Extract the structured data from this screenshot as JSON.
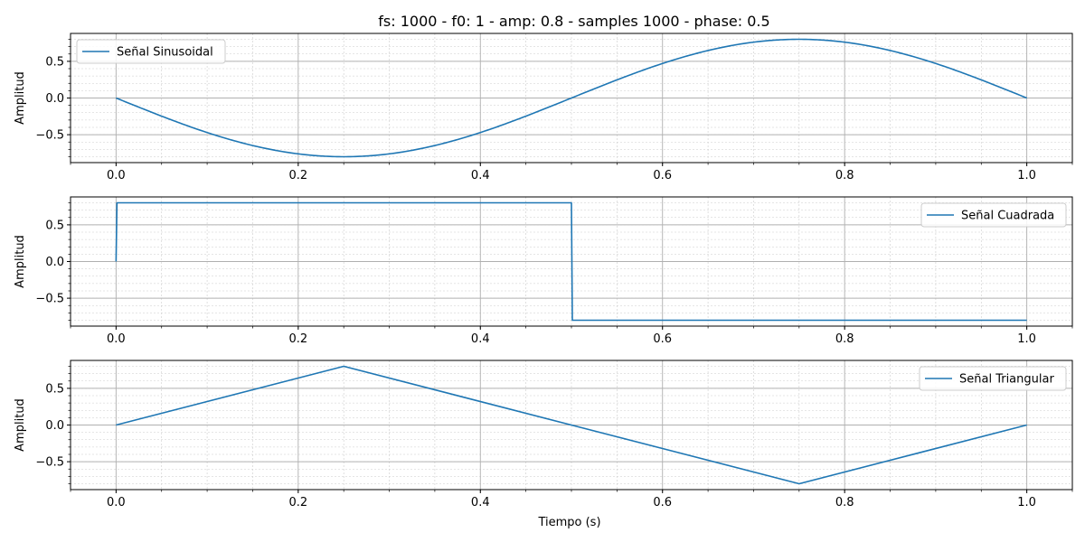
{
  "figure": {
    "title": "fs: 1000 - f0: 1 - amp: 0.8 - samples 1000 - phase: 0.5",
    "xlabel": "Tiempo (s)"
  },
  "colors": {
    "line": "#1f77b4",
    "major_grid": "#b0b0b0",
    "minor_grid": "#cccccc",
    "legend_border": "#cccccc"
  },
  "chart_data": [
    {
      "type": "line",
      "series": [
        {
          "name": "Señal Sinusoidal",
          "kind": "sine",
          "x": [
            0,
            0.125,
            0.25,
            0.375,
            0.5,
            0.625,
            0.75,
            0.875,
            1.0
          ],
          "y": [
            0,
            -0.566,
            -0.8,
            -0.566,
            0,
            0.566,
            0.8,
            0.566,
            0
          ]
        }
      ],
      "xlabel": "",
      "ylabel": "Amplitud",
      "xlim": [
        -0.05,
        1.05
      ],
      "ylim": [
        -0.88,
        0.88
      ],
      "xticks": [
        0.0,
        0.2,
        0.4,
        0.6,
        0.8,
        1.0
      ],
      "xtick_labels": [
        "0.0",
        "0.2",
        "0.4",
        "0.6",
        "0.8",
        "1.0"
      ],
      "yticks": [
        0.5,
        0.0,
        -0.5
      ],
      "ytick_labels": [
        "0.5",
        "0.0",
        "−0.5"
      ],
      "grid": true,
      "legend": "upper left"
    },
    {
      "type": "line",
      "series": [
        {
          "name": "Señal Cuadrada",
          "kind": "polyline",
          "x": [
            0,
            0.001,
            0.5,
            0.501,
            1.0
          ],
          "y": [
            0,
            0.8,
            0.8,
            -0.8,
            -0.8
          ]
        }
      ],
      "xlabel": "",
      "ylabel": "Amplitud",
      "xlim": [
        -0.05,
        1.05
      ],
      "ylim": [
        -0.88,
        0.88
      ],
      "xticks": [
        0.0,
        0.2,
        0.4,
        0.6,
        0.8,
        1.0
      ],
      "xtick_labels": [
        "0.0",
        "0.2",
        "0.4",
        "0.6",
        "0.8",
        "1.0"
      ],
      "yticks": [
        0.5,
        0.0,
        -0.5
      ],
      "ytick_labels": [
        "0.5",
        "0.0",
        "−0.5"
      ],
      "grid": true,
      "legend": "upper right"
    },
    {
      "type": "line",
      "series": [
        {
          "name": "Señal Triangular",
          "kind": "polyline",
          "x": [
            0,
            0.25,
            0.75,
            1.0
          ],
          "y": [
            0,
            0.8,
            -0.8,
            0
          ]
        }
      ],
      "xlabel": "Tiempo (s)",
      "ylabel": "Amplitud",
      "xlim": [
        -0.05,
        1.05
      ],
      "ylim": [
        -0.88,
        0.88
      ],
      "xticks": [
        0.0,
        0.2,
        0.4,
        0.6,
        0.8,
        1.0
      ],
      "xtick_labels": [
        "0.0",
        "0.2",
        "0.4",
        "0.6",
        "0.8",
        "1.0"
      ],
      "yticks": [
        0.5,
        0.0,
        -0.5
      ],
      "ytick_labels": [
        "0.5",
        "0.0",
        "−0.5"
      ],
      "grid": true,
      "legend": "upper right"
    }
  ]
}
